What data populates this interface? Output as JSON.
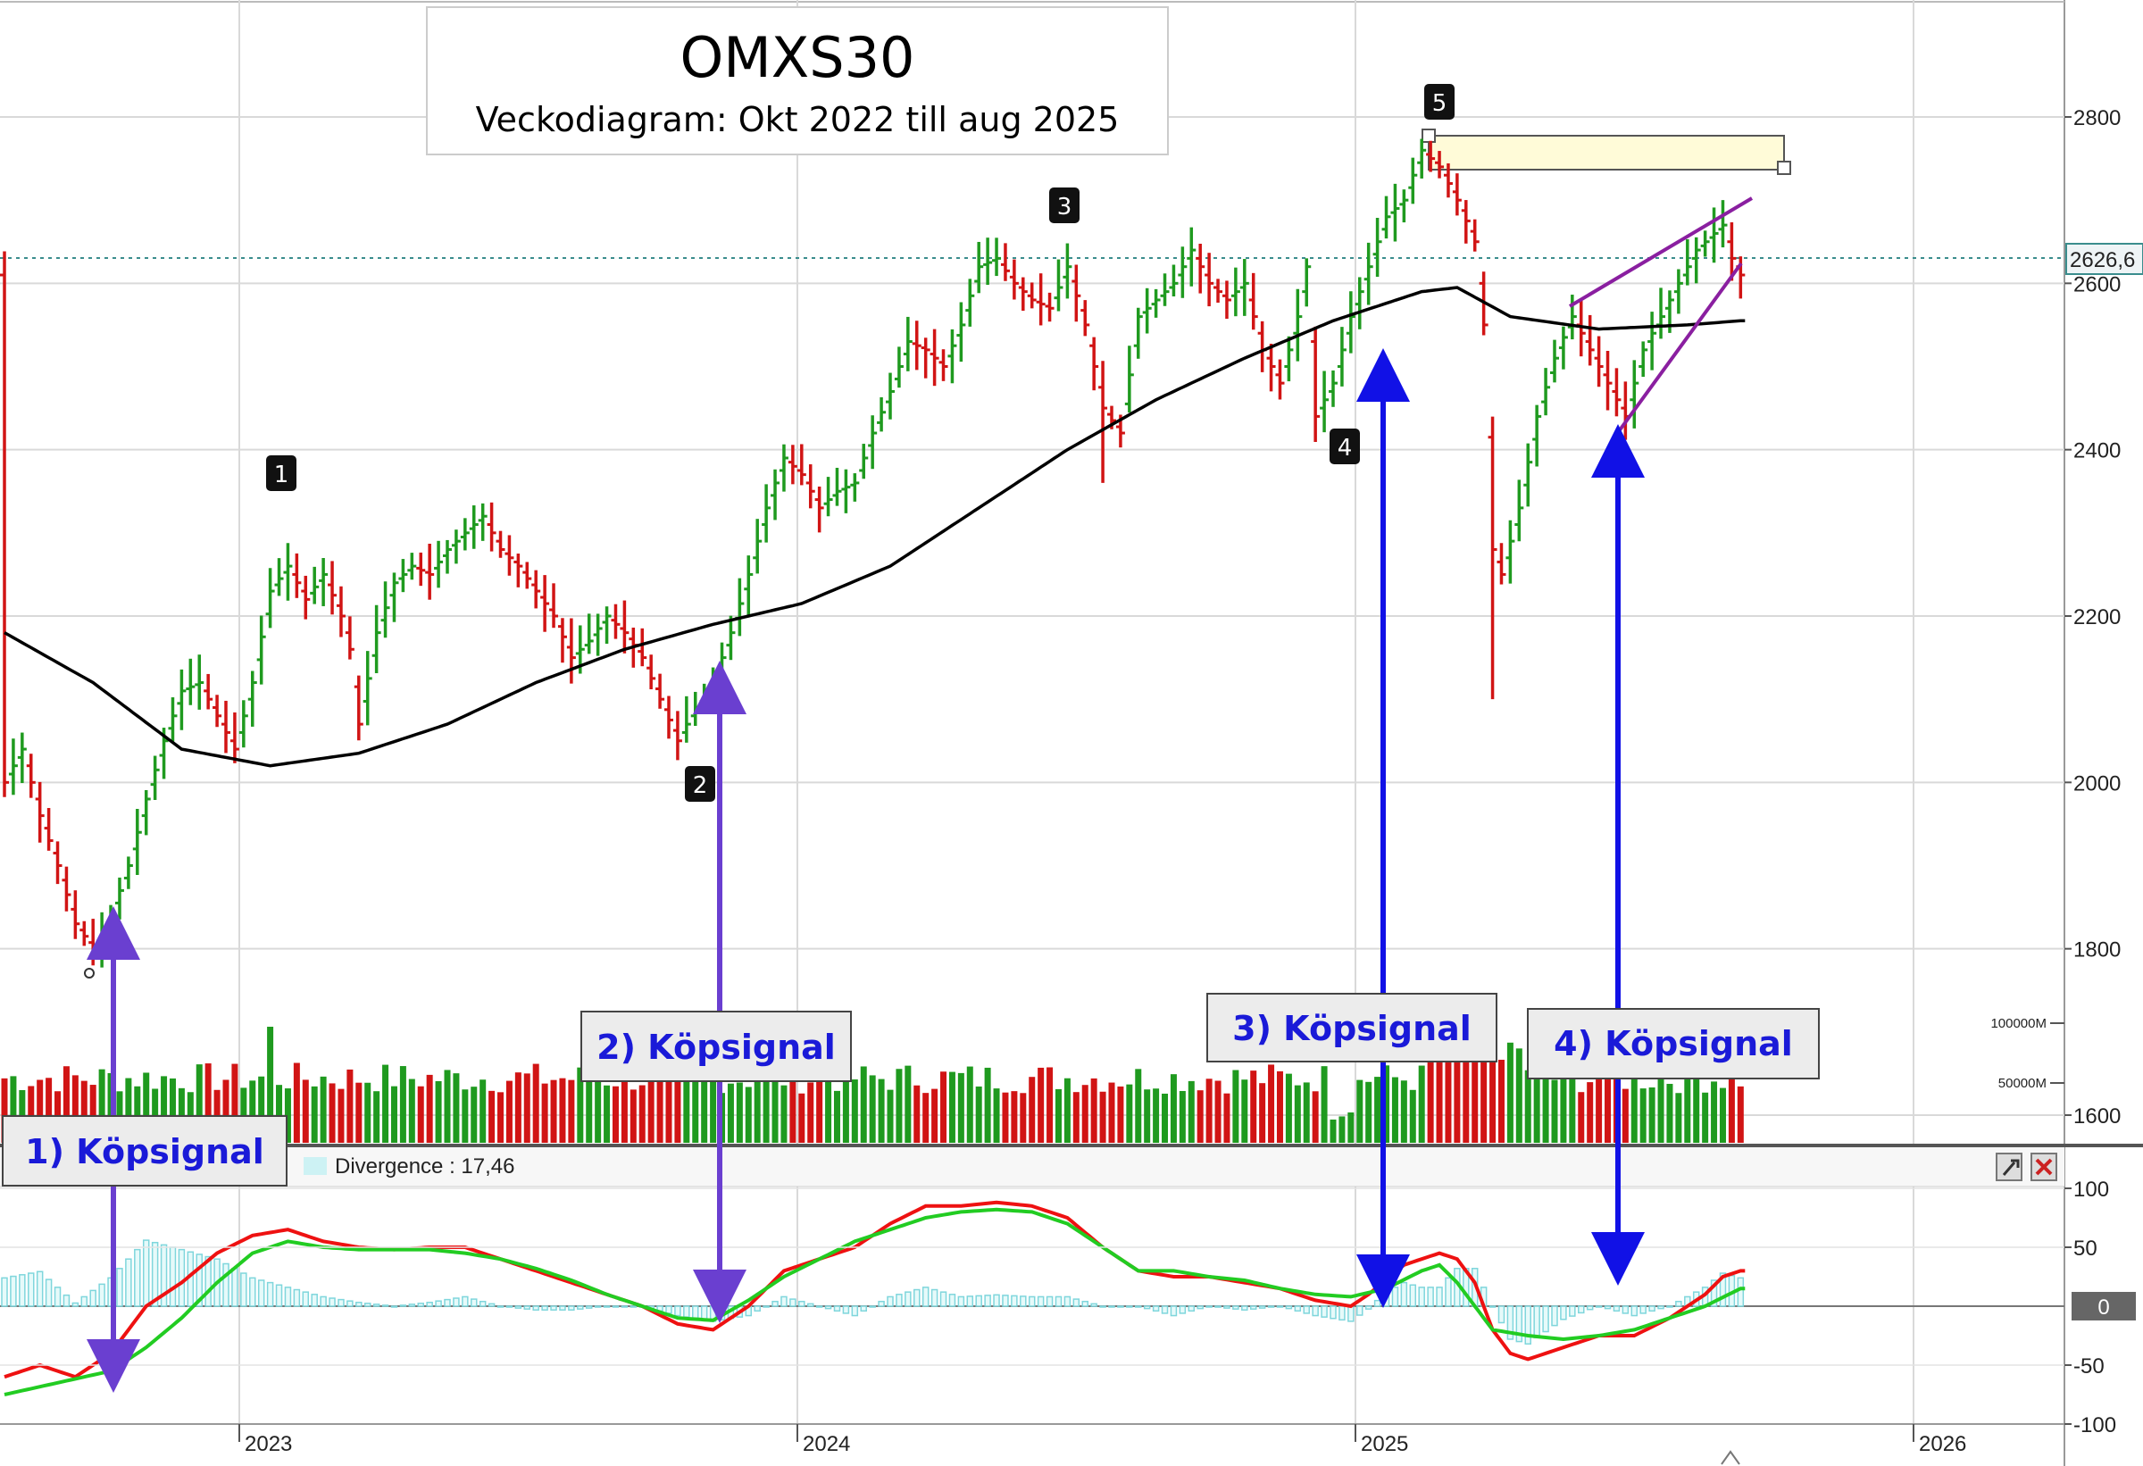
{
  "title": {
    "main": "OMXS30",
    "subtitle": "Veckodiagram: Okt 2022 till aug 2025"
  },
  "colors": {
    "up": "#1f9a1f",
    "down": "#d11414",
    "ma": "#000000",
    "signal_arrow_purple": "#6a3fd0",
    "signal_arrow_blue": "#1111e6",
    "macd": "#ee1111",
    "macd_signal": "#22cc22",
    "divergence": "#7fd6dc",
    "wedge": "#8a1fa0",
    "resistance_zone": "#fffbd8"
  },
  "price_axis": {
    "ticks": [
      1600,
      1800,
      2000,
      2200,
      2400,
      2600,
      2800
    ],
    "tick_labels": [
      "1600",
      "1800",
      "2000",
      "2200",
      "2400",
      "2600",
      "2800"
    ],
    "last_value_label": "2626,6",
    "last_value": 2626.6
  },
  "volume_axis": {
    "tick_labels": [
      "100000M",
      "50000M"
    ],
    "ticks": [
      100000,
      50000
    ]
  },
  "indicator_axis": {
    "ticks": [
      100,
      50,
      0,
      -50,
      -100
    ],
    "tick_labels": [
      "100",
      "50",
      "0",
      "-50",
      "-100"
    ],
    "zero_label": "0"
  },
  "time_axis": {
    "labels": [
      "2023",
      "2024",
      "2025",
      "2026"
    ]
  },
  "divergence_label": "Divergence : 17,46",
  "markers": [
    "1",
    "2",
    "3",
    "4",
    "5"
  ],
  "signals": {
    "s1": "1) Köpsignal",
    "s2": "2) Köpsignal",
    "s3": "3) Köpsignal",
    "s4": "4) Köpsignal"
  },
  "chart_data": {
    "type": "bar",
    "title": "OMXS30",
    "subtitle": "Veckodiagram: Okt 2022 till aug 2025",
    "price_ylim": [
      1540,
      2920
    ],
    "indicator_ylim": [
      -105,
      110
    ],
    "anchors_week_price": [
      [
        0,
        2000
      ],
      [
        2,
        2040
      ],
      [
        4,
        1960
      ],
      [
        6,
        1900
      ],
      [
        8,
        1830
      ],
      [
        10,
        1800
      ],
      [
        12,
        1840
      ],
      [
        14,
        1900
      ],
      [
        16,
        1980
      ],
      [
        18,
        2050
      ],
      [
        20,
        2110
      ],
      [
        22,
        2120
      ],
      [
        24,
        2080
      ],
      [
        26,
        2040
      ],
      [
        28,
        2120
      ],
      [
        30,
        2230
      ],
      [
        32,
        2260
      ],
      [
        34,
        2220
      ],
      [
        36,
        2250
      ],
      [
        38,
        2200
      ],
      [
        39,
        2160
      ],
      [
        40,
        2070
      ],
      [
        42,
        2180
      ],
      [
        44,
        2240
      ],
      [
        46,
        2260
      ],
      [
        48,
        2250
      ],
      [
        50,
        2280
      ],
      [
        52,
        2300
      ],
      [
        54,
        2320
      ],
      [
        56,
        2280
      ],
      [
        58,
        2260
      ],
      [
        60,
        2230
      ],
      [
        62,
        2200
      ],
      [
        64,
        2150
      ],
      [
        66,
        2170
      ],
      [
        68,
        2200
      ],
      [
        70,
        2180
      ],
      [
        72,
        2150
      ],
      [
        74,
        2100
      ],
      [
        76,
        2050
      ],
      [
        78,
        2090
      ],
      [
        80,
        2120
      ],
      [
        82,
        2180
      ],
      [
        84,
        2250
      ],
      [
        86,
        2330
      ],
      [
        88,
        2390
      ],
      [
        90,
        2370
      ],
      [
        92,
        2330
      ],
      [
        94,
        2350
      ],
      [
        96,
        2360
      ],
      [
        98,
        2420
      ],
      [
        100,
        2470
      ],
      [
        102,
        2530
      ],
      [
        104,
        2520
      ],
      [
        106,
        2500
      ],
      [
        108,
        2550
      ],
      [
        110,
        2620
      ],
      [
        112,
        2630
      ],
      [
        114,
        2600
      ],
      [
        116,
        2580
      ],
      [
        118,
        2570
      ],
      [
        120,
        2620
      ],
      [
        122,
        2550
      ],
      [
        124,
        2450
      ],
      [
        126,
        2420
      ],
      [
        128,
        2560
      ],
      [
        130,
        2580
      ],
      [
        132,
        2600
      ],
      [
        134,
        2640
      ],
      [
        136,
        2600
      ],
      [
        138,
        2580
      ],
      [
        140,
        2600
      ],
      [
        142,
        2520
      ],
      [
        144,
        2480
      ],
      [
        146,
        2560
      ],
      [
        147,
        2620
      ],
      [
        148,
        2440
      ],
      [
        150,
        2480
      ],
      [
        152,
        2560
      ],
      [
        154,
        2620
      ],
      [
        156,
        2680
      ],
      [
        158,
        2700
      ],
      [
        160,
        2760
      ],
      [
        162,
        2740
      ],
      [
        164,
        2700
      ],
      [
        166,
        2650
      ],
      [
        167,
        2550
      ],
      [
        168,
        2280
      ],
      [
        169,
        2250
      ],
      [
        171,
        2330
      ],
      [
        173,
        2440
      ],
      [
        175,
        2510
      ],
      [
        177,
        2560
      ],
      [
        179,
        2520
      ],
      [
        181,
        2480
      ],
      [
        183,
        2440
      ],
      [
        185,
        2520
      ],
      [
        187,
        2560
      ],
      [
        189,
        2600
      ],
      [
        191,
        2640
      ],
      [
        193,
        2660
      ],
      [
        194,
        2670
      ],
      [
        195,
        2630
      ],
      [
        196,
        2610
      ]
    ],
    "moving_average_anchors": [
      [
        0,
        2180
      ],
      [
        10,
        2120
      ],
      [
        20,
        2040
      ],
      [
        30,
        2020
      ],
      [
        40,
        2035
      ],
      [
        50,
        2070
      ],
      [
        60,
        2120
      ],
      [
        70,
        2160
      ],
      [
        80,
        2190
      ],
      [
        90,
        2215
      ],
      [
        100,
        2260
      ],
      [
        110,
        2330
      ],
      [
        120,
        2400
      ],
      [
        130,
        2460
      ],
      [
        140,
        2510
      ],
      [
        150,
        2555
      ],
      [
        160,
        2590
      ],
      [
        164,
        2595
      ],
      [
        170,
        2560
      ],
      [
        180,
        2545
      ],
      [
        190,
        2550
      ],
      [
        196,
        2555
      ]
    ],
    "macd_anchors": [
      [
        0,
        -60
      ],
      [
        4,
        -50
      ],
      [
        8,
        -60
      ],
      [
        12,
        -40
      ],
      [
        16,
        0
      ],
      [
        20,
        20
      ],
      [
        24,
        45
      ],
      [
        28,
        60
      ],
      [
        32,
        65
      ],
      [
        36,
        55
      ],
      [
        40,
        50
      ],
      [
        44,
        48
      ],
      [
        48,
        50
      ],
      [
        52,
        50
      ],
      [
        56,
        40
      ],
      [
        60,
        30
      ],
      [
        64,
        20
      ],
      [
        68,
        10
      ],
      [
        72,
        0
      ],
      [
        76,
        -15
      ],
      [
        80,
        -20
      ],
      [
        84,
        0
      ],
      [
        88,
        30
      ],
      [
        92,
        40
      ],
      [
        96,
        50
      ],
      [
        100,
        70
      ],
      [
        104,
        85
      ],
      [
        108,
        85
      ],
      [
        112,
        88
      ],
      [
        116,
        85
      ],
      [
        120,
        75
      ],
      [
        124,
        50
      ],
      [
        128,
        30
      ],
      [
        132,
        25
      ],
      [
        136,
        25
      ],
      [
        140,
        20
      ],
      [
        144,
        15
      ],
      [
        148,
        5
      ],
      [
        152,
        0
      ],
      [
        154,
        10
      ],
      [
        158,
        35
      ],
      [
        162,
        45
      ],
      [
        164,
        40
      ],
      [
        166,
        20
      ],
      [
        168,
        -20
      ],
      [
        170,
        -40
      ],
      [
        172,
        -45
      ],
      [
        176,
        -35
      ],
      [
        180,
        -25
      ],
      [
        184,
        -25
      ],
      [
        188,
        -10
      ],
      [
        192,
        10
      ],
      [
        194,
        25
      ],
      [
        196,
        30
      ]
    ],
    "macd_signal_anchors": [
      [
        0,
        -75
      ],
      [
        6,
        -65
      ],
      [
        12,
        -55
      ],
      [
        16,
        -35
      ],
      [
        20,
        -10
      ],
      [
        24,
        20
      ],
      [
        28,
        45
      ],
      [
        32,
        55
      ],
      [
        36,
        50
      ],
      [
        40,
        48
      ],
      [
        44,
        48
      ],
      [
        48,
        48
      ],
      [
        52,
        45
      ],
      [
        56,
        40
      ],
      [
        60,
        32
      ],
      [
        64,
        22
      ],
      [
        68,
        10
      ],
      [
        72,
        0
      ],
      [
        76,
        -10
      ],
      [
        80,
        -12
      ],
      [
        84,
        5
      ],
      [
        88,
        25
      ],
      [
        92,
        40
      ],
      [
        96,
        55
      ],
      [
        100,
        65
      ],
      [
        104,
        75
      ],
      [
        108,
        80
      ],
      [
        112,
        82
      ],
      [
        116,
        80
      ],
      [
        120,
        70
      ],
      [
        124,
        50
      ],
      [
        128,
        30
      ],
      [
        132,
        30
      ],
      [
        136,
        25
      ],
      [
        140,
        22
      ],
      [
        144,
        15
      ],
      [
        148,
        10
      ],
      [
        152,
        8
      ],
      [
        156,
        15
      ],
      [
        160,
        30
      ],
      [
        162,
        35
      ],
      [
        164,
        20
      ],
      [
        166,
        0
      ],
      [
        168,
        -20
      ],
      [
        172,
        -25
      ],
      [
        176,
        -28
      ],
      [
        180,
        -25
      ],
      [
        184,
        -20
      ],
      [
        188,
        -10
      ],
      [
        192,
        0
      ],
      [
        196,
        15
      ]
    ]
  }
}
